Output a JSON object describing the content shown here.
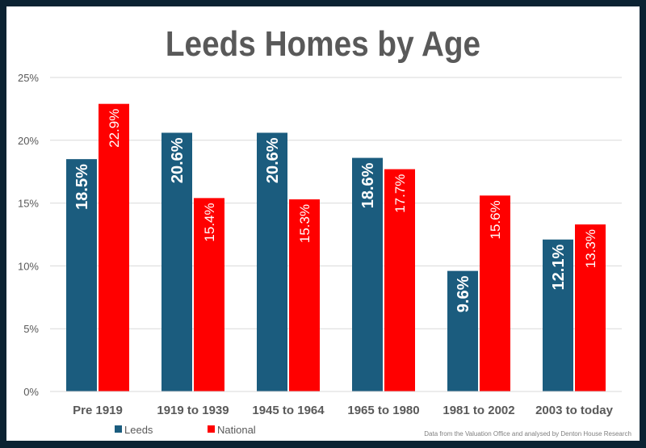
{
  "chart_data": {
    "type": "bar",
    "title": "Leeds Homes by Age",
    "categories": [
      "Pre 1919",
      "1919 to 1939",
      "1945 to 1964",
      "1965 to 1980",
      "1981 to 2002",
      "2003 to today"
    ],
    "series": [
      {
        "name": "Leeds",
        "color": "#1b5c7e",
        "values": [
          18.5,
          20.6,
          20.6,
          18.6,
          9.6,
          12.1
        ],
        "labels": [
          "18.5%",
          "20.6%",
          "20.6%",
          "18.6%",
          "9.6%",
          "12.1%"
        ]
      },
      {
        "name": "National",
        "color": "#ff0000",
        "values": [
          22.9,
          15.4,
          15.3,
          17.7,
          15.6,
          13.3
        ],
        "labels": [
          "22.9%",
          "15.4%",
          "15.3%",
          "17.7%",
          "15.6%",
          "13.3%"
        ]
      }
    ],
    "ylim": [
      0,
      25
    ],
    "yticks": [
      "0%",
      "5%",
      "10%",
      "15%",
      "20%",
      "25%"
    ],
    "grid": true,
    "legend": "bottom-left",
    "xlabel": "",
    "ylabel": ""
  },
  "footnote": "Data from the Valuation Office and analysed by Denton House Research"
}
